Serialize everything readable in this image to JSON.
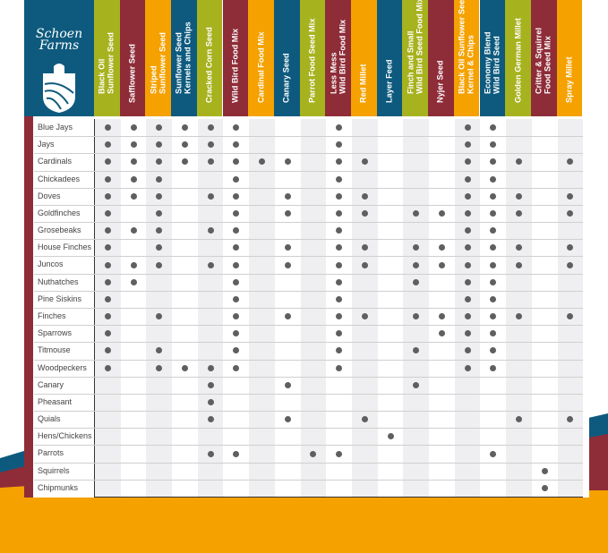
{
  "brand": {
    "logo_text": "Schoen\nFarms"
  },
  "colors": {
    "olive": "#a7b21f",
    "red": "#8e2c38",
    "orange": "#f5a100",
    "blue": "#0e5a7e",
    "dot": "#5f5f5f",
    "shade": "#efeff1"
  },
  "chart_data": {
    "type": "table",
    "columns": [
      {
        "label": "Black Oil\nSunflower Seed",
        "color": "#a7b21f"
      },
      {
        "label": "Safflower Seed",
        "color": "#8e2c38"
      },
      {
        "label": "Striped\nSunflower Seed",
        "color": "#f5a100"
      },
      {
        "label": "Sunflower Seed\nKernels and Chips",
        "color": "#0e5a7e"
      },
      {
        "label": "Cracked Corn Seed",
        "color": "#a7b21f"
      },
      {
        "label": "Wild Bird Food Mix",
        "color": "#8e2c38"
      },
      {
        "label": "Cardinal Food Mix",
        "color": "#f5a100"
      },
      {
        "label": "Canary Seed",
        "color": "#0e5a7e"
      },
      {
        "label": "Parrot Food Seed Mix",
        "color": "#a7b21f"
      },
      {
        "label": "Less Mess\nWild Bird Food Mix",
        "color": "#8e2c38"
      },
      {
        "label": "Red Millet",
        "color": "#f5a100"
      },
      {
        "label": "Layer Feed",
        "color": "#0e5a7e"
      },
      {
        "label": "Finch and Small\nWild Bird Seed Food Mix",
        "color": "#a7b21f"
      },
      {
        "label": "Nyjer Seed",
        "color": "#8e2c38"
      },
      {
        "label": "Black Oil Sunflower Seed\nKernel & Chips",
        "color": "#f5a100"
      },
      {
        "label": "Economy Blend\nWild Bird Seed",
        "color": "#0e5a7e"
      },
      {
        "label": "Golden German Millet",
        "color": "#a7b21f"
      },
      {
        "label": "Critter & Squirrel\nFood Seed Mix",
        "color": "#8e2c38"
      },
      {
        "label": "Spray Millet",
        "color": "#f5a100"
      }
    ],
    "rows": [
      {
        "label": "Blue Jays",
        "marks": [
          0,
          1,
          2,
          3,
          4,
          5,
          9,
          14,
          15
        ]
      },
      {
        "label": "Jays",
        "marks": [
          0,
          1,
          2,
          3,
          4,
          5,
          9,
          14,
          15
        ]
      },
      {
        "label": "Cardinals",
        "marks": [
          0,
          1,
          2,
          3,
          4,
          5,
          6,
          7,
          9,
          10,
          14,
          15,
          16,
          18
        ]
      },
      {
        "label": "Chickadees",
        "marks": [
          0,
          1,
          2,
          5,
          9,
          14,
          15
        ]
      },
      {
        "label": "Doves",
        "marks": [
          0,
          1,
          2,
          4,
          5,
          7,
          9,
          10,
          14,
          15,
          16,
          18
        ]
      },
      {
        "label": "Goldfinches",
        "marks": [
          0,
          2,
          5,
          7,
          9,
          10,
          12,
          13,
          14,
          15,
          16,
          18
        ]
      },
      {
        "label": "Grosebeaks",
        "marks": [
          0,
          1,
          2,
          4,
          5,
          9,
          14,
          15
        ]
      },
      {
        "label": "House Finches",
        "marks": [
          0,
          2,
          5,
          7,
          9,
          10,
          12,
          13,
          14,
          15,
          16,
          18
        ]
      },
      {
        "label": "Juncos",
        "marks": [
          0,
          1,
          2,
          4,
          5,
          7,
          9,
          10,
          12,
          13,
          14,
          15,
          16,
          18
        ]
      },
      {
        "label": "Nuthatches",
        "marks": [
          0,
          1,
          5,
          9,
          12,
          14,
          15
        ]
      },
      {
        "label": "Pine Siskins",
        "marks": [
          0,
          5,
          9,
          14,
          15
        ]
      },
      {
        "label": "Finches",
        "marks": [
          0,
          2,
          5,
          7,
          9,
          10,
          12,
          13,
          14,
          15,
          16,
          18
        ]
      },
      {
        "label": "Sparrows",
        "marks": [
          0,
          5,
          9,
          13,
          14,
          15
        ]
      },
      {
        "label": "Titmouse",
        "marks": [
          0,
          2,
          5,
          9,
          12,
          14,
          15
        ]
      },
      {
        "label": "Woodpeckers",
        "marks": [
          0,
          2,
          3,
          4,
          5,
          9,
          14,
          15
        ]
      },
      {
        "label": "Canary",
        "marks": [
          4,
          7,
          12
        ]
      },
      {
        "label": "Pheasant",
        "marks": [
          4
        ]
      },
      {
        "label": "Quials",
        "marks": [
          4,
          7,
          10,
          16,
          18
        ]
      },
      {
        "label": "Hens/Chickens",
        "marks": [
          11
        ]
      },
      {
        "label": "Parrots",
        "marks": [
          4,
          5,
          8,
          9,
          15
        ]
      },
      {
        "label": "Squirrels",
        "marks": [
          17
        ]
      },
      {
        "label": "Chipmunks",
        "marks": [
          17
        ]
      }
    ]
  }
}
